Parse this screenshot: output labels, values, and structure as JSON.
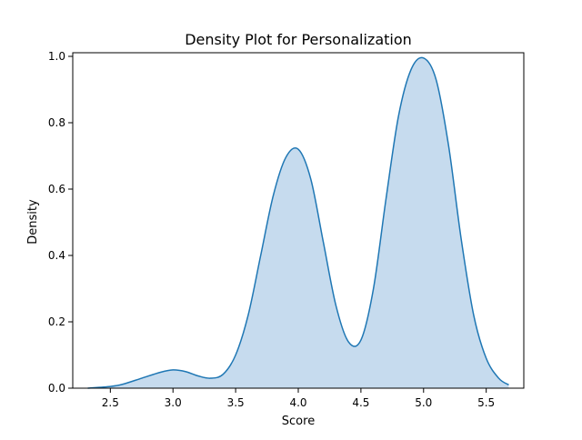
{
  "chart_data": {
    "type": "area",
    "title": "Density Plot for Personalization",
    "xlabel": "Score",
    "ylabel": "Density",
    "xlim": [
      2.2,
      5.8
    ],
    "ylim": [
      0.0,
      1.0
    ],
    "x_ticks": [
      2.5,
      3.0,
      3.5,
      4.0,
      4.5,
      5.0,
      5.5
    ],
    "x_tick_labels": [
      "2.5",
      "3.0",
      "3.5",
      "4.0",
      "4.5",
      "5.0",
      "5.5"
    ],
    "y_ticks": [
      0.0,
      0.2,
      0.4,
      0.6,
      0.8,
      1.0
    ],
    "y_tick_labels": [
      "0.0",
      "0.2",
      "0.4",
      "0.6",
      "0.8",
      "1.0"
    ],
    "grid": false,
    "series": [
      {
        "fill_color": "#c6dbee",
        "line_color": "#1f77b4",
        "x": [
          2.32,
          2.5,
          2.6,
          2.75,
          2.9,
          3.0,
          3.1,
          3.2,
          3.3,
          3.4,
          3.5,
          3.6,
          3.7,
          3.8,
          3.9,
          4.0,
          4.1,
          4.2,
          4.3,
          4.4,
          4.5,
          4.6,
          4.7,
          4.8,
          4.9,
          5.0,
          5.1,
          5.2,
          5.3,
          5.4,
          5.5,
          5.6,
          5.68
        ],
        "y": [
          0.0,
          0.005,
          0.012,
          0.03,
          0.048,
          0.055,
          0.05,
          0.037,
          0.03,
          0.042,
          0.1,
          0.22,
          0.4,
          0.58,
          0.695,
          0.72,
          0.63,
          0.44,
          0.25,
          0.14,
          0.145,
          0.3,
          0.57,
          0.82,
          0.96,
          0.995,
          0.93,
          0.73,
          0.45,
          0.22,
          0.09,
          0.03,
          0.01
        ]
      }
    ]
  }
}
